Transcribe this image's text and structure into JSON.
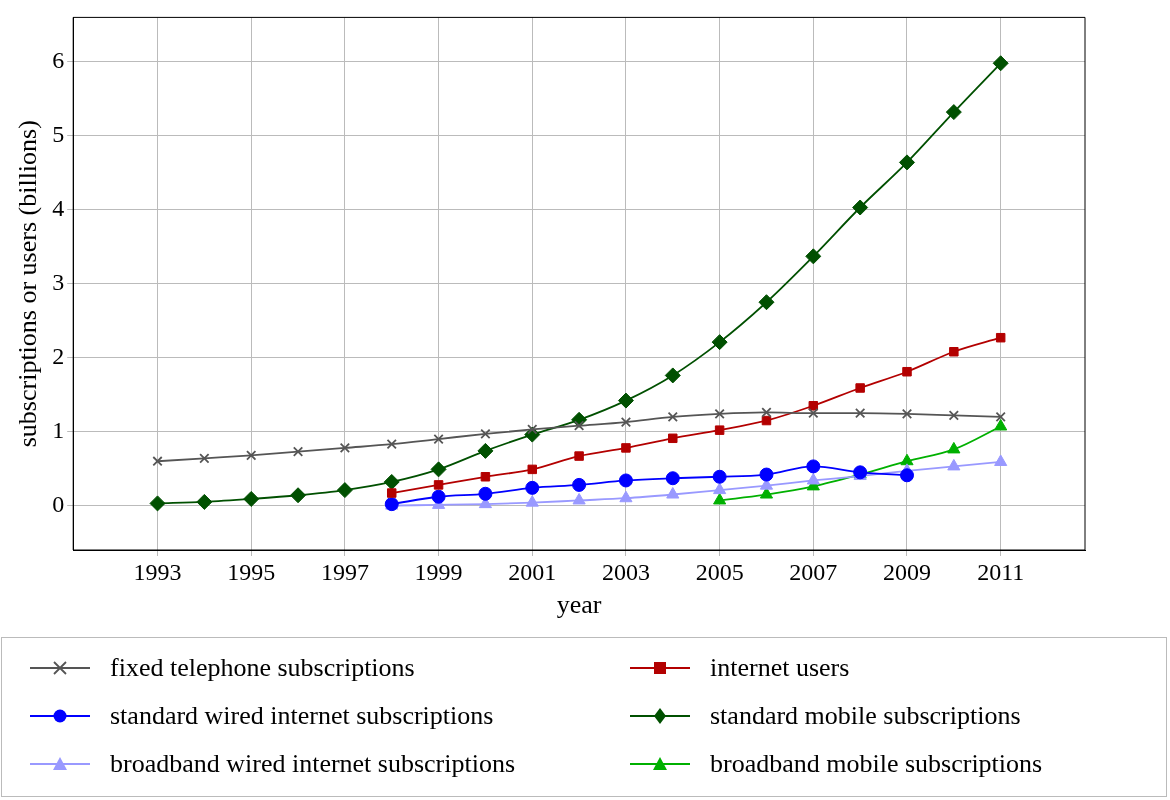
{
  "chart_data": {
    "type": "line",
    "xlabel": "year",
    "ylabel": "subscriptions or users (billions)",
    "xlim": [
      1991.2,
      2012.8
    ],
    "xticks": [
      1993,
      1995,
      1997,
      1999,
      2001,
      2003,
      2005,
      2007,
      2009,
      2011
    ],
    "ylim": [
      -0.6,
      6.6
    ],
    "yticks": [
      0,
      1,
      2,
      3,
      4,
      5,
      6
    ],
    "grid": true,
    "legend": "bottom",
    "series": [
      {
        "name": "fixed telephone subscriptions",
        "color": "#555555",
        "marker": "cross",
        "x": [
          1993,
          1994,
          1995,
          1996,
          1997,
          1998,
          1999,
          2000,
          2001,
          2002,
          2003,
          2004,
          2005,
          2006,
          2007,
          2008,
          2009,
          2010,
          2011
        ],
        "values": [
          0.6,
          0.64,
          0.68,
          0.73,
          0.78,
          0.83,
          0.9,
          0.97,
          1.03,
          1.08,
          1.13,
          1.2,
          1.24,
          1.26,
          1.25,
          1.25,
          1.24,
          1.22,
          1.2
        ]
      },
      {
        "name": "internet users",
        "color": "#b30000",
        "marker": "square",
        "x": [
          1998,
          1999,
          2000,
          2001,
          2002,
          2003,
          2004,
          2005,
          2006,
          2007,
          2008,
          2009,
          2010,
          2011
        ],
        "values": [
          0.17,
          0.28,
          0.39,
          0.49,
          0.67,
          0.78,
          0.91,
          1.02,
          1.15,
          1.35,
          1.59,
          1.81,
          2.08,
          2.27
        ]
      },
      {
        "name": "standard wired internet subscriptions",
        "color": "#0000ff",
        "marker": "circle",
        "x": [
          1998,
          1999,
          2000,
          2001,
          2002,
          2003,
          2004,
          2005,
          2006,
          2007,
          2008,
          2009
        ],
        "values": [
          0.02,
          0.12,
          0.16,
          0.24,
          0.28,
          0.34,
          0.37,
          0.39,
          0.42,
          0.53,
          0.45,
          0.41
        ]
      },
      {
        "name": "standard mobile subscriptions",
        "color": "#005000",
        "marker": "diamond",
        "x": [
          1993,
          1994,
          1995,
          1996,
          1997,
          1998,
          1999,
          2000,
          2001,
          2002,
          2003,
          2004,
          2005,
          2006,
          2007,
          2008,
          2009,
          2010,
          2011
        ],
        "values": [
          0.03,
          0.05,
          0.09,
          0.14,
          0.21,
          0.32,
          0.49,
          0.74,
          0.96,
          1.16,
          1.42,
          1.76,
          2.21,
          2.75,
          3.37,
          4.03,
          4.64,
          5.32,
          5.98
        ]
      },
      {
        "name": "broadband wired internet subscriptions",
        "color": "#9999ff",
        "marker": "triangle",
        "x": [
          1998,
          1999,
          2000,
          2001,
          2002,
          2003,
          2004,
          2005,
          2006,
          2007,
          2008,
          2009,
          2010,
          2011
        ],
        "values": [
          0,
          0.01,
          0.02,
          0.04,
          0.07,
          0.1,
          0.15,
          0.21,
          0.27,
          0.34,
          0.4,
          0.47,
          0.53,
          0.59
        ]
      },
      {
        "name": "broadband mobile subscriptions",
        "color": "#00b000",
        "marker": "triangle",
        "x": [
          2005,
          2006,
          2007,
          2008,
          2009,
          2010,
          2011
        ],
        "values": [
          0.07,
          0.15,
          0.26,
          0.42,
          0.6,
          0.76,
          1.07
        ]
      }
    ]
  }
}
